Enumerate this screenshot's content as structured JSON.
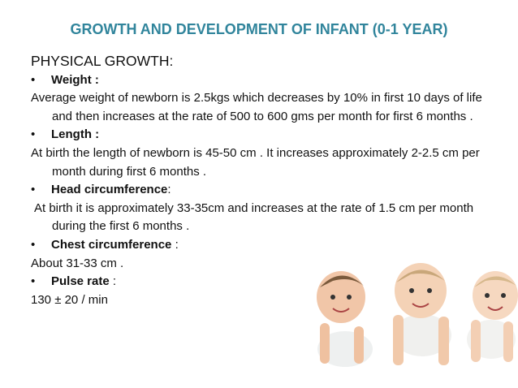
{
  "title": "GROWTH AND DEVELOPMENT OF INFANT (0-1 YEAR)",
  "heading": "PHYSICAL GROWTH:",
  "items": [
    {
      "label": "Weight :",
      "text": "Average weight of newborn is 2.5kgs which decreases by 10% in first 10 days of life and then increases at the rate of 500 to 600 gms per month for first 6  months ."
    },
    {
      "label": "Length :",
      "text": "At birth the length of newborn is 45-50 cm . It increases approximately 2-2.5 cm per month during first 6 months ."
    },
    {
      "label": "Head circumference",
      "suffix": ":",
      "text": "At birth it is approximately 33-35cm and increases at the rate of 1.5 cm per month during the first 6 months ."
    },
    {
      "label": "Chest circumference",
      "suffix": " :",
      "text": "About 31-33 cm ."
    },
    {
      "label": "Pulse rate",
      "suffix": " :",
      "text": "130 ± 20 / min"
    }
  ]
}
